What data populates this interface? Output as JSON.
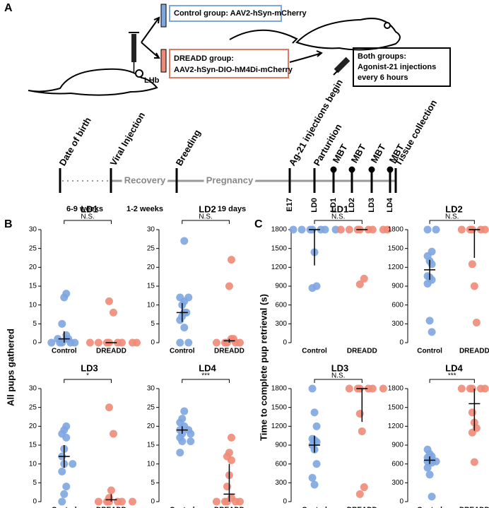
{
  "diagram": {
    "panel_labels": [
      "A",
      "B",
      "C"
    ],
    "control_box": "Control group: AAV2-hSyn-mCherry",
    "dreadd_box": [
      "DREADD group:",
      "AAV2-hSyn-DIO-hM4Di-mCherry"
    ],
    "region": "LHb",
    "both_box": [
      "Both groups:",
      "Agonist-21 injections",
      "every 6 hours"
    ],
    "timeline": {
      "events": [
        "Date of birth",
        "Viral Injection",
        "Breeding",
        "Ag-21 injections begin",
        "Parturition",
        "MBT",
        "MBT",
        "MBT",
        "MBT",
        "Tissue collection"
      ],
      "segments": [
        "Recovery",
        "Pregnancy"
      ],
      "durations": [
        "6-9 weeks",
        "1-2 weeks",
        "19 days"
      ],
      "days": [
        "E17",
        "LD0",
        "LD1",
        "LD2",
        "LD3",
        "LD4"
      ]
    }
  },
  "y_axis_labels": [
    "All pups gathered",
    "Time to complete pup retrieval (s)"
  ],
  "chart_data": [
    {
      "type": "strip",
      "title": "LD1",
      "significance": "N.S.",
      "categories": [
        "Control",
        "DREADD"
      ],
      "ylim": [
        0,
        30
      ],
      "yticks": [
        0,
        5,
        10,
        15,
        20,
        25,
        30
      ],
      "groups": [
        {
          "color": "#7ea6e0",
          "values": [
            0,
            0,
            0,
            0,
            0,
            1,
            1,
            1,
            2,
            5,
            12,
            13
          ],
          "mean": 1,
          "low": 0,
          "high": 3
        },
        {
          "color": "#f08a78",
          "values": [
            0,
            0,
            0,
            0,
            0,
            0,
            0,
            0,
            8,
            11
          ],
          "mean": 0,
          "low": 0,
          "high": 0
        }
      ]
    },
    {
      "type": "strip",
      "title": "LD2",
      "significance": "N.S.",
      "categories": [
        "Control",
        "DREADD"
      ],
      "ylim": [
        0,
        30
      ],
      "yticks": [
        0,
        5,
        10,
        15,
        20,
        25,
        30
      ],
      "groups": [
        {
          "color": "#7ea6e0",
          "values": [
            0,
            0,
            4,
            6,
            7,
            8,
            8,
            10,
            11,
            12,
            12,
            27
          ],
          "mean": 8,
          "low": 5.5,
          "high": 10.5
        },
        {
          "color": "#f08a78",
          "values": [
            0,
            0,
            0,
            0,
            0,
            1,
            1,
            15,
            22
          ],
          "mean": 0.5,
          "low": 0,
          "high": 1
        }
      ]
    },
    {
      "type": "strip",
      "title": "LD3",
      "significance": "*",
      "categories": [
        "Control",
        "DREADD"
      ],
      "ylim": [
        0,
        30
      ],
      "yticks": [
        0,
        5,
        10,
        15,
        20,
        25,
        30
      ],
      "groups": [
        {
          "color": "#7ea6e0",
          "values": [
            0,
            2,
            4,
            8,
            10,
            10,
            12,
            14,
            17,
            18,
            19,
            20
          ],
          "mean": 12,
          "low": 9,
          "high": 15
        },
        {
          "color": "#f08a78",
          "values": [
            0,
            0,
            0,
            0,
            0,
            0,
            1,
            3,
            18,
            25
          ],
          "mean": 0.5,
          "low": 0,
          "high": 2
        }
      ]
    },
    {
      "type": "strip",
      "title": "LD4",
      "significance": "***",
      "categories": [
        "Control",
        "DREADD"
      ],
      "ylim": [
        0,
        30
      ],
      "yticks": [
        0,
        5,
        10,
        15,
        20,
        25,
        30
      ],
      "groups": [
        {
          "color": "#7ea6e0",
          "values": [
            13,
            16,
            16,
            17,
            18,
            18,
            19,
            19,
            20,
            21,
            22,
            24
          ],
          "mean": 19,
          "low": 18,
          "high": 20
        },
        {
          "color": "#f08a78",
          "values": [
            0,
            0,
            0,
            0,
            0,
            1,
            4,
            7,
            11,
            12,
            13,
            17
          ],
          "mean": 2,
          "low": 0,
          "high": 10
        }
      ]
    },
    {
      "type": "strip",
      "title": "LD1",
      "significance": "N.S.",
      "categories": [
        "Control",
        "DREADD"
      ],
      "ylim": [
        0,
        1800
      ],
      "yticks": [
        0,
        300,
        600,
        900,
        1200,
        1500,
        1800
      ],
      "groups": [
        {
          "color": "#7ea6e0",
          "values": [
            1800,
            1800,
            1800,
            1800,
            1800,
            1800,
            1800,
            1440,
            900,
            870
          ],
          "mean": 1800,
          "low": 1230,
          "high": 1800
        },
        {
          "color": "#f08a78",
          "values": [
            1800,
            1800,
            1800,
            1800,
            1800,
            1800,
            1800,
            1800,
            1020,
            930
          ],
          "mean": 1800,
          "low": 1800,
          "high": 1800
        }
      ]
    },
    {
      "type": "strip",
      "title": "LD2",
      "significance": "N.S.",
      "categories": [
        "Control",
        "DREADD"
      ],
      "ylim": [
        0,
        1800
      ],
      "yticks": [
        0,
        300,
        600,
        900,
        1200,
        1500,
        1800
      ],
      "groups": [
        {
          "color": "#7ea6e0",
          "values": [
            1800,
            1800,
            1450,
            1380,
            1300,
            1250,
            1060,
            1040,
            1000,
            940,
            350,
            170
          ],
          "mean": 1160,
          "low": 1000,
          "high": 1320
        },
        {
          "color": "#f08a78",
          "values": [
            1800,
            1800,
            1800,
            1800,
            1800,
            1800,
            1250,
            900,
            320
          ],
          "mean": 1800,
          "low": 1350,
          "high": 1800
        }
      ]
    },
    {
      "type": "strip",
      "title": "LD3",
      "significance": "N.S.",
      "categories": [
        "Control",
        "DREADD"
      ],
      "ylim": [
        0,
        1800
      ],
      "yticks": [
        0,
        300,
        600,
        900,
        1200,
        1500,
        1800
      ],
      "groups": [
        {
          "color": "#7ea6e0",
          "values": [
            1800,
            1420,
            1200,
            1000,
            980,
            950,
            900,
            830,
            600,
            380,
            270
          ],
          "mean": 900,
          "low": 780,
          "high": 1050
        },
        {
          "color": "#f08a78",
          "values": [
            1800,
            1800,
            1800,
            1800,
            1800,
            1800,
            1400,
            1120,
            230,
            120
          ],
          "mean": 1800,
          "low": 1270,
          "high": 1800
        }
      ]
    },
    {
      "type": "strip",
      "title": "LD4",
      "significance": "***",
      "categories": [
        "Control",
        "DREADD"
      ],
      "ylim": [
        0,
        1800
      ],
      "yticks": [
        0,
        300,
        600,
        900,
        1200,
        1500,
        1800
      ],
      "groups": [
        {
          "color": "#7ea6e0",
          "values": [
            830,
            760,
            720,
            700,
            680,
            660,
            640,
            640,
            620,
            540,
            430,
            80
          ],
          "mean": 660,
          "low": 600,
          "high": 720
        },
        {
          "color": "#f08a78",
          "values": [
            1800,
            1800,
            1800,
            1800,
            1800,
            1800,
            1420,
            1260,
            1170,
            1100,
            630
          ],
          "mean": 1560,
          "low": 1130,
          "high": 1800
        }
      ]
    }
  ]
}
